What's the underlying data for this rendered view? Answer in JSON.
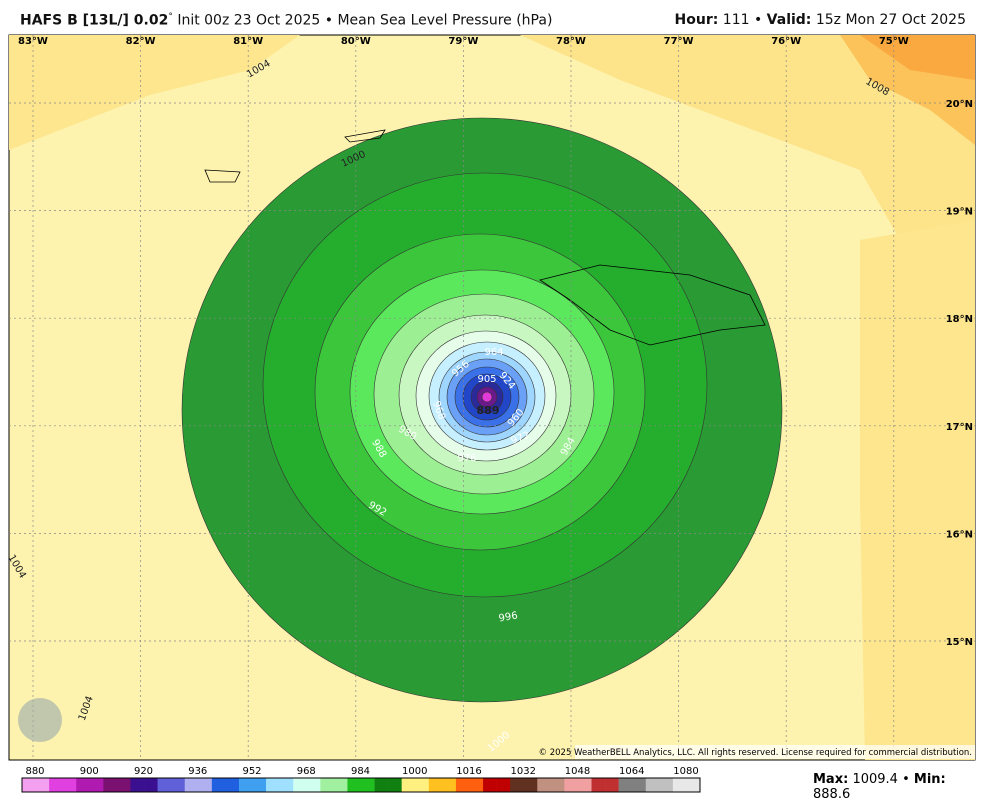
{
  "header": {
    "model": "HAFS B [13L/] 0.02",
    "degree": "°",
    "init": "Init 00z 23 Oct 2025 • Mean Sea Level Pressure (hPa)",
    "hour_label": "Hour:",
    "hour": "111 •",
    "valid_label": "Valid:",
    "valid": "15z Mon 27 Oct 2025"
  },
  "map": {
    "longitudes": [
      "83°W",
      "82°W",
      "81°W",
      "80°W",
      "79°W",
      "78°W",
      "77°W",
      "76°W",
      "75°W"
    ],
    "latitudes": [
      "20°N",
      "19°N",
      "18°N",
      "17°N",
      "16°N",
      "15°N"
    ],
    "contour_labels": [
      "1004",
      "1008",
      "1000",
      "1004",
      "1004",
      "1000",
      "996",
      "992",
      "988",
      "984",
      "980",
      "976",
      "972",
      "968",
      "964",
      "960",
      "956",
      "905",
      "889",
      "924"
    ],
    "copyright": "© 2025 WeatherBELL Analytics, LLC. All rights reserved. License required for commercial distribution."
  },
  "colorbar": {
    "labels": [
      "880",
      "900",
      "920",
      "936",
      "952",
      "968",
      "984",
      "1000",
      "1016",
      "1032",
      "1048",
      "1064",
      "1080"
    ]
  },
  "footer": {
    "max_label": "Max:",
    "max": "1009.4",
    "sep": "•",
    "min_label": "Min:",
    "min": "888.6"
  }
}
